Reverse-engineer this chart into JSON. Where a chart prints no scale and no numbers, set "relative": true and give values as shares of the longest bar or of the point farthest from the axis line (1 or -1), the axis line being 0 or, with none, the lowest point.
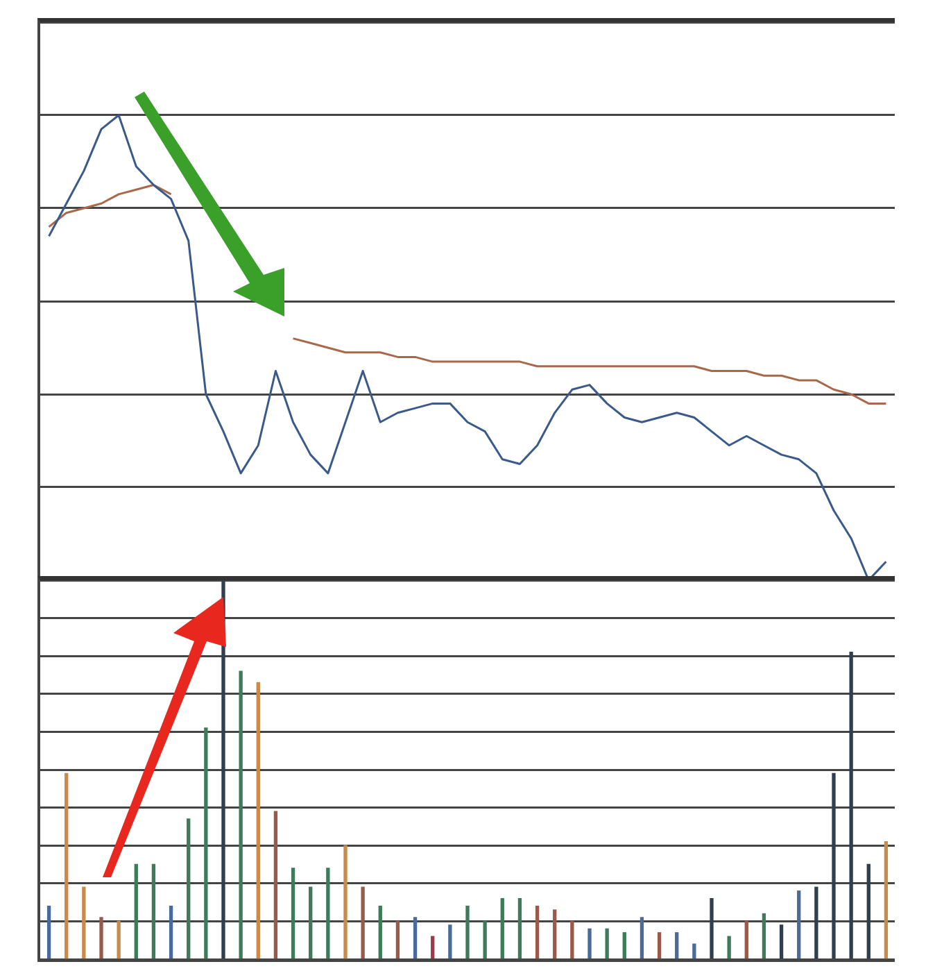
{
  "chart_data": [
    {
      "type": "line",
      "relative": true,
      "grid": "y",
      "categories": [
        null,
        null,
        null,
        null,
        null,
        null,
        null,
        null,
        null,
        null,
        null,
        null,
        null,
        null,
        null,
        null,
        null,
        null,
        null,
        null,
        null,
        null,
        null,
        null,
        null,
        null,
        null,
        null,
        null,
        null,
        null,
        null,
        null,
        null,
        null,
        null,
        null,
        null,
        null,
        null,
        null,
        null,
        null,
        null,
        null,
        null,
        null,
        null,
        null
      ],
      "series": [
        {
          "color": "#3b5a8c",
          "values": [
            0.74,
            0.81,
            0.88,
            0.97,
            1,
            0.89,
            0.85,
            0.82,
            0.73,
            0.4,
            0.32,
            0.23,
            0.29,
            0.45,
            0.34,
            0.27,
            0.23,
            0.34,
            0.45,
            0.34,
            0.36,
            0.37,
            0.38,
            0.38,
            0.34,
            0.32,
            0.26,
            0.25,
            0.29,
            0.36,
            0.41,
            0.42,
            0.38,
            0.35,
            0.34,
            0.35,
            0.36,
            0.35,
            0.32,
            0.29,
            0.31,
            0.29,
            0.27,
            0.26,
            0.23,
            0.15,
            0.09,
            0,
            0.04
          ]
        },
        {
          "color": "#a8694a",
          "values": [
            0.76,
            0.79,
            0.8,
            0.81,
            0.83,
            0.84,
            0.85,
            0.83,
            null,
            null,
            null,
            null,
            null,
            null,
            0.52,
            0.51,
            0.5,
            0.49,
            0.49,
            0.49,
            0.48,
            0.48,
            0.47,
            0.47,
            0.47,
            0.47,
            0.47,
            0.47,
            0.46,
            0.46,
            0.46,
            0.46,
            0.46,
            0.46,
            0.46,
            0.46,
            0.46,
            0.46,
            0.45,
            0.45,
            0.45,
            0.44,
            0.44,
            0.43,
            0.43,
            0.41,
            0.4,
            0.38,
            0.38
          ]
        }
      ]
    },
    {
      "type": "bar",
      "relative": true,
      "grid": "y",
      "categories": [
        null,
        null,
        null,
        null,
        null,
        null,
        null,
        null,
        null,
        null,
        null,
        null,
        null,
        null,
        null,
        null,
        null,
        null,
        null,
        null,
        null,
        null,
        null,
        null,
        null,
        null,
        null,
        null,
        null,
        null,
        null,
        null,
        null,
        null,
        null,
        null,
        null,
        null,
        null,
        null,
        null,
        null,
        null,
        null,
        null,
        null,
        null,
        null,
        null
      ],
      "values": [
        0.14,
        0.49,
        0.19,
        0.11,
        0.1,
        0.25,
        0.25,
        0.14,
        0.37,
        0.61,
        1,
        0.76,
        0.73,
        0.39,
        0.24,
        0.19,
        0.24,
        0.3,
        0.19,
        0.14,
        0.1,
        0.11,
        0.06,
        0.09,
        0.14,
        0.1,
        0.16,
        0.16,
        0.14,
        0.13,
        0.1,
        0.08,
        0.08,
        0.07,
        0.11,
        0.07,
        0.07,
        0.04,
        0.16,
        0.06,
        0.1,
        0.12,
        0.09,
        0.18,
        0.19,
        0.49,
        0.81,
        0.25,
        0.31
      ],
      "colors": [
        "#4a6a9a",
        "#c98a4a",
        "#c98a4a",
        "#9a5a4a",
        "#c98a4a",
        "#3f7a5a",
        "#3f7a5a",
        "#4a6a9a",
        "#3f7a5a",
        "#3f7a5a",
        "#2f3f4f",
        "#3f7a5a",
        "#c98a4a",
        "#9a5a4a",
        "#3f7a5a",
        "#3f7a5a",
        "#3f7a5a",
        "#c98a4a",
        "#9a5a4a",
        "#3f7a5a",
        "#9a5a4a",
        "#4a6a9a",
        "#9a3a4a",
        "#4a6a9a",
        "#3f7a5a",
        "#3f7a5a",
        "#3f7a5a",
        "#3f7a5a",
        "#9a5a4a",
        "#9a5a4a",
        "#9a5a4a",
        "#4a6a9a",
        "#3f7a5a",
        "#3f7a5a",
        "#4a6a9a",
        "#9a5a4a",
        "#4a6a9a",
        "#4a6a9a",
        "#2f3f4f",
        "#3f7a5a",
        "#9a5a4a",
        "#3f7a5a",
        "#2f3f4f",
        "#4a6a9a",
        "#2f3f4f",
        "#2f3f4f",
        "#2f3f4f",
        "#2f3f4f",
        "#c98a4a"
      ]
    }
  ]
}
